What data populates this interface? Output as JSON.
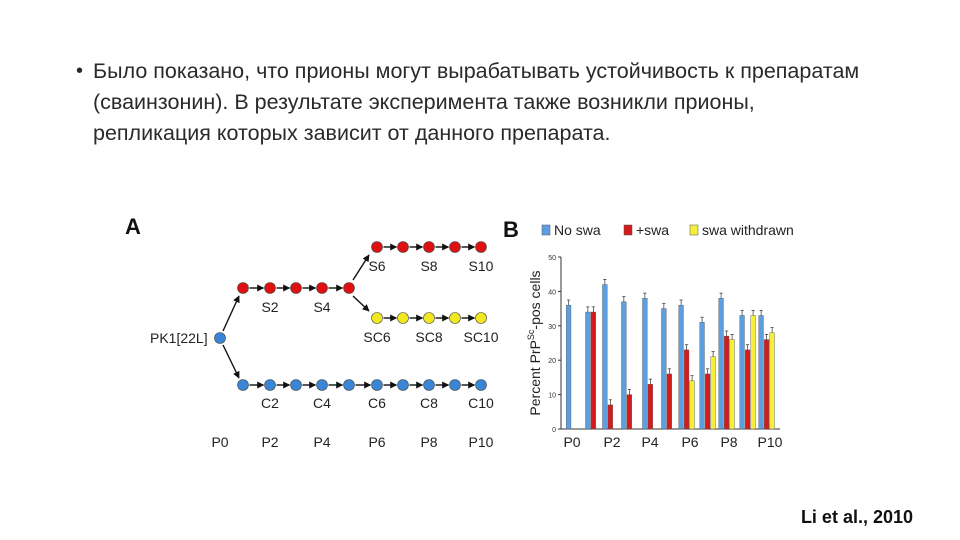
{
  "slide": {
    "bullet": "Было показано, что прионы могут вырабатывать устойчивость к препаратам (сваинзонин). В результате эксперимента также возникли прионы, репликация которых зависит от данного препарата.",
    "citation": "Li et al., 2010"
  },
  "panel_a": {
    "label": "A",
    "origin_label": "PK1[22L]",
    "swa_labels": [
      "S2",
      "S4",
      "S6",
      "S8",
      "S10"
    ],
    "swa_withdrawn_labels": [
      "SC6",
      "SC8",
      "SC10"
    ],
    "control_labels": [
      "C2",
      "C4",
      "C6",
      "C8",
      "C10"
    ],
    "passage_labels": [
      "P0",
      "P2",
      "P4",
      "P6",
      "P8",
      "P10"
    ],
    "colors": {
      "swa": "#dd1111",
      "withdrawn": "#f2e81f",
      "control": "#3a86d6"
    }
  },
  "panel_b": {
    "label": "B",
    "chart_data": {
      "type": "bar",
      "ylabel_main": "Percent PrP",
      "ylabel_sup": "Sc",
      "ylabel_tail": "-pos cells",
      "ylim": [
        0,
        50
      ],
      "yticks": [
        "0",
        "10",
        "20",
        "30",
        "40",
        "50"
      ],
      "xtick_labels": [
        "P0",
        "P2",
        "P4",
        "P6",
        "P8",
        "P10"
      ],
      "legend_position": "top",
      "series": [
        {
          "name": "No swa",
          "color": "#5c9ee0",
          "values": [
            36,
            34,
            42,
            37,
            38,
            35,
            36,
            31,
            38,
            33,
            33
          ]
        },
        {
          "name": "+swa",
          "color": "#d41a1a",
          "values": [
            null,
            34,
            7,
            10,
            13,
            16,
            23,
            16,
            27,
            23,
            26
          ]
        },
        {
          "name": "swa withdrawn",
          "color": "#f5ee3a",
          "values": [
            null,
            null,
            null,
            null,
            null,
            null,
            14,
            21,
            26,
            33,
            28
          ]
        }
      ]
    }
  }
}
